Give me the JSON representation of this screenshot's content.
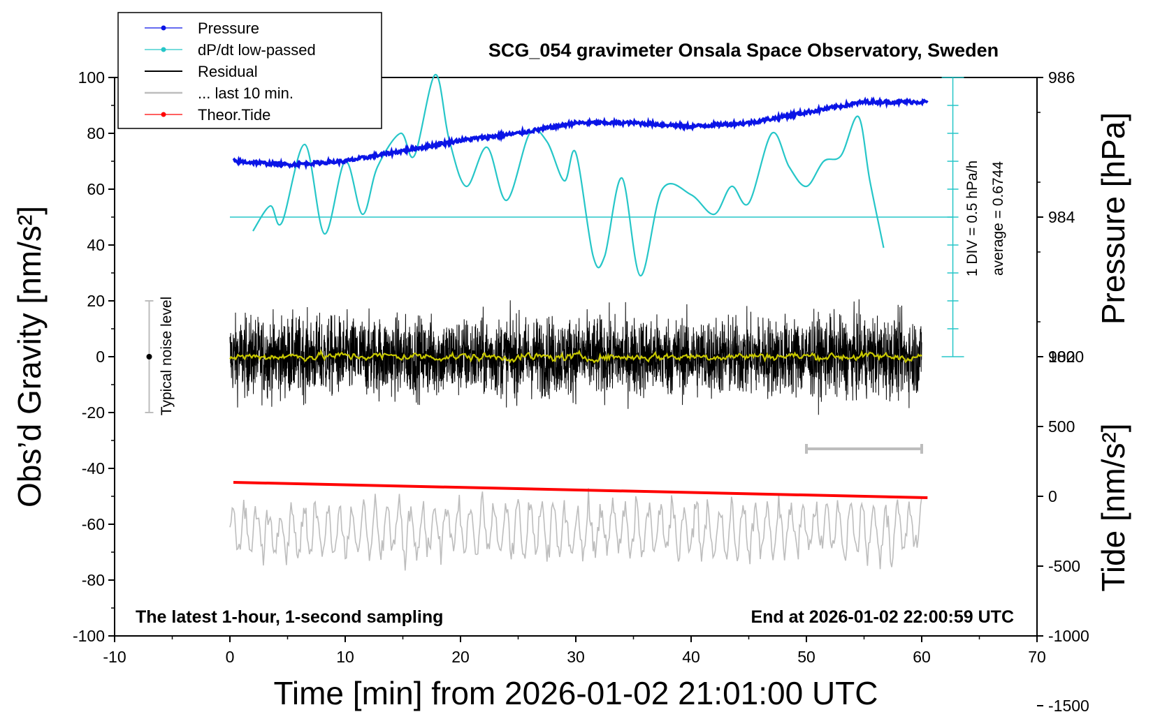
{
  "chart_data": {
    "type": "line",
    "title": "SCG_054 gravimeter Onsala Space Observatory, Sweden",
    "xlabel": "Time [min] from 2026-01-02 21:01:00 UTC",
    "ylabel_left": "Obs’d Gravity [nm/s²]",
    "ylabel_right_top": "Pressure [hPa]",
    "ylabel_right_bottom": "Tide [nm/s²]",
    "xlim": [
      -10,
      70
    ],
    "ylim_left": [
      -100,
      100
    ],
    "x_ticks": [
      "-10",
      "0",
      "10",
      "20",
      "30",
      "40",
      "50",
      "60",
      "70"
    ],
    "y_left_ticks": [
      "100",
      "80",
      "60",
      "40",
      "20",
      "0",
      "-20",
      "-40",
      "-60",
      "-80",
      "-100"
    ],
    "y_pressure_ticks": [
      "986",
      "984",
      "982"
    ],
    "y_tide_ticks": [
      "1000",
      "500",
      "0",
      "-500",
      "-1000",
      "-1500"
    ],
    "note_left": "The latest 1-hour, 1-second sampling",
    "note_right": "End at 2026-01-02 22:00:59 UTC",
    "dpdt_scale_label": "1 DIV = 0.5 hPa/h",
    "dpdt_average_label": "average = 0.6744",
    "noise_label": "Typical noise level",
    "noise_level": [
      -20,
      20
    ],
    "legend_position": "top-left",
    "legend": [
      {
        "name": "Pressure",
        "color": "#0a14e6",
        "marker": true
      },
      {
        "name": "dP/dt low-passed",
        "color": "#26c6c8",
        "marker": true
      },
      {
        "name": "Residual",
        "color": "#000000",
        "marker": false
      },
      {
        "name": "... last 10 min.",
        "color": "#bdbdbd",
        "marker": false
      },
      {
        "name": "Theor.Tide",
        "color": "#ff0000",
        "marker": true
      }
    ],
    "series": [
      {
        "name": "Pressure",
        "color": "#0a14e6",
        "unit": "hPa",
        "x": [
          0.3,
          5,
          10,
          15,
          20,
          25,
          30,
          35,
          40,
          45,
          50,
          55,
          60.5
        ],
        "y": [
          984.8,
          984.75,
          984.8,
          984.95,
          985.1,
          985.2,
          985.35,
          985.35,
          985.3,
          985.35,
          985.5,
          985.65,
          985.65
        ]
      },
      {
        "name": "dP/dt low-passed",
        "color": "#26c6c8",
        "unit": "gravity-axis position (baseline 50 = average)",
        "x": [
          2,
          3.5,
          4.5,
          6.5,
          8.2,
          10,
          11.5,
          12.8,
          14.8,
          16,
          17.8,
          19,
          20.5,
          22.3,
          24,
          26,
          27.5,
          29,
          30,
          31.5,
          32.5,
          34,
          35.6,
          37.5,
          40,
          42,
          43.5,
          45,
          47,
          48.5,
          50,
          51.5,
          53,
          54.5,
          55.5,
          56.7
        ],
        "y": [
          45,
          54,
          48,
          76,
          44,
          70,
          51,
          68,
          80,
          72,
          101,
          78,
          61,
          75,
          56,
          80,
          77,
          63,
          73,
          36,
          36,
          64,
          29,
          60,
          58,
          51,
          61,
          55,
          80,
          68,
          61,
          70,
          72,
          86,
          63,
          39
        ]
      },
      {
        "name": "Residual",
        "color": "#000000",
        "unit": "nm/s²",
        "x_range": [
          0,
          60
        ],
        "y_range": [
          -28,
          25
        ]
      },
      {
        "name": "Residual low-passed",
        "color": "#c8c800",
        "unit": "nm/s²",
        "x_range": [
          0,
          60
        ],
        "y_range": [
          -2,
          3
        ]
      },
      {
        "name": "... last 10 min.",
        "color": "#bdbdbd",
        "unit": "nm/s²",
        "x_range": [
          0,
          60
        ],
        "y_range": [
          -85,
          -43
        ],
        "bar_x": [
          50,
          60
        ]
      },
      {
        "name": "Theor.Tide",
        "color": "#ff0000",
        "unit": "nm/s²",
        "x": [
          0.3,
          60.5
        ],
        "y": [
          100,
          -10
        ]
      }
    ]
  }
}
